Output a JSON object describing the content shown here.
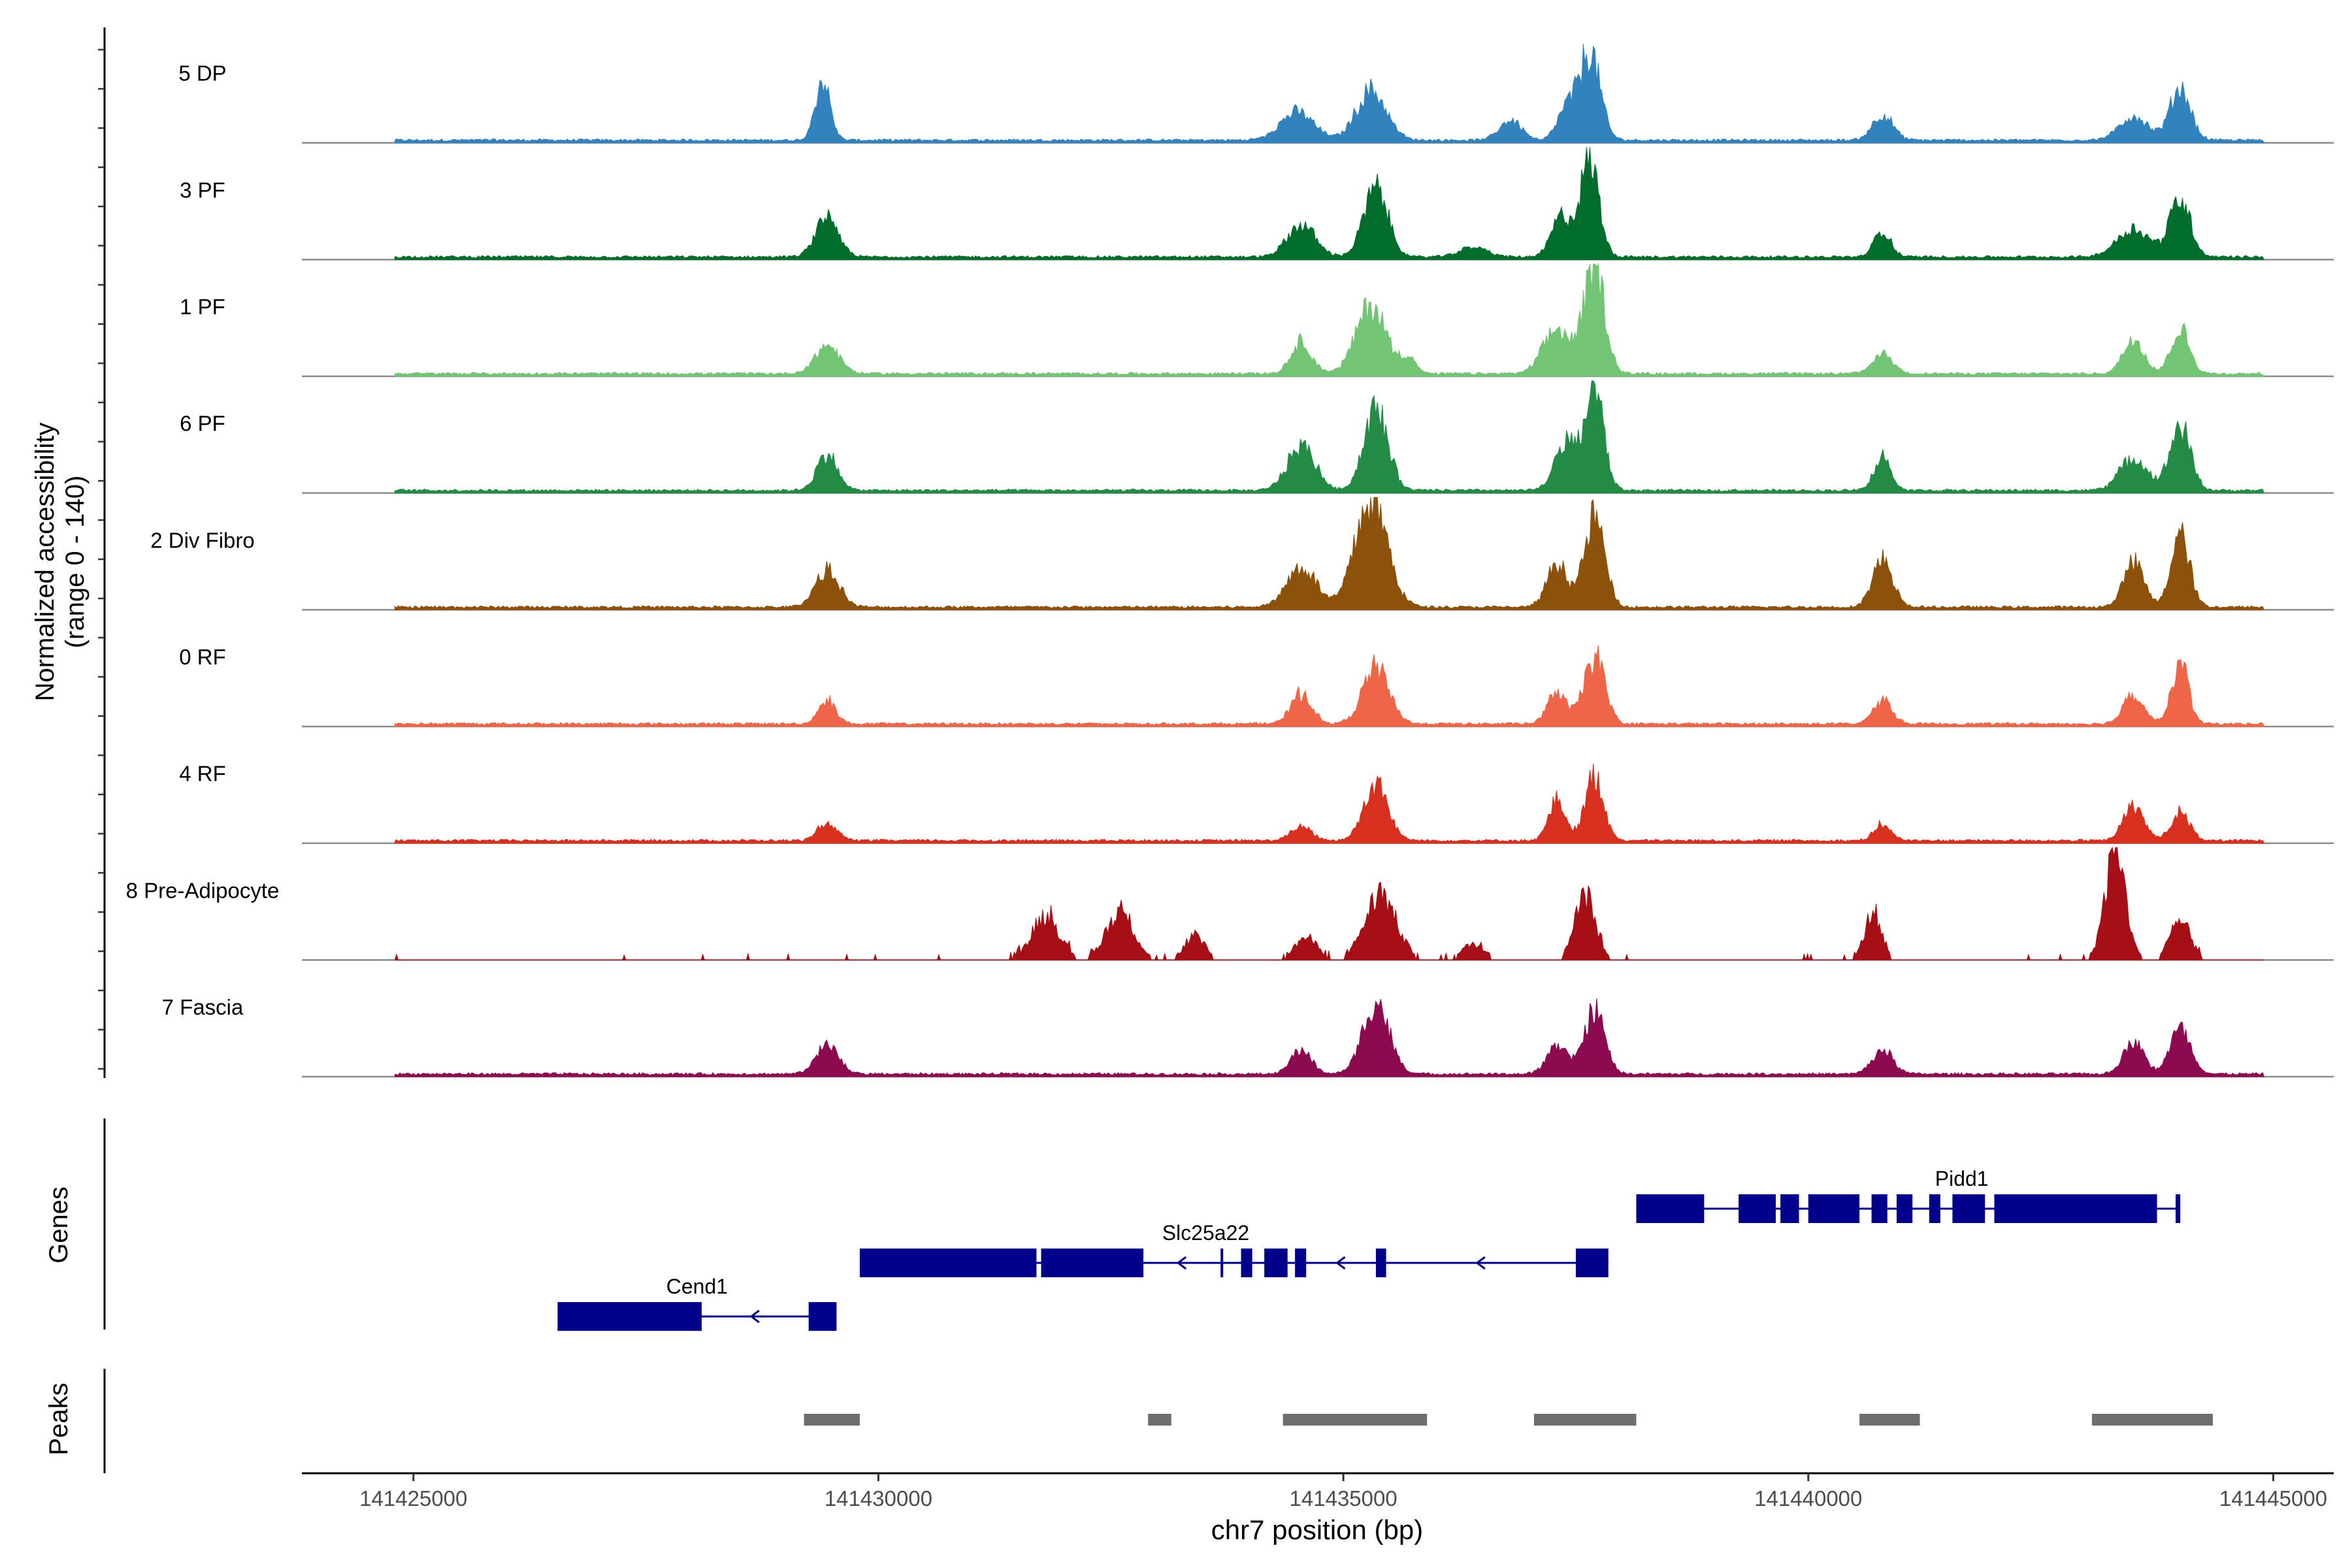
{
  "chart_data": {
    "type": "area",
    "title": "",
    "xlabel": "chr7 position (bp)",
    "ylabel": "Normalized accessibility\n(range 0 - 140)",
    "ylabel_line1": "Normalized accessibility",
    "ylabel_line2": "(range 0 - 140)",
    "y_range": [
      0,
      140
    ],
    "xlim": [
      141423800,
      141445650
    ],
    "x_ticks": [
      141425000,
      141430000,
      141435000,
      141440000,
      141445000
    ],
    "x_tick_labels": [
      "141425000",
      "141430000",
      "141435000",
      "141440000",
      "141445000"
    ],
    "track_labels": {
      "genes": "Genes",
      "peaks": "Peaks"
    },
    "coverage_range": [
      141424800,
      141444900
    ],
    "series": [
      {
        "name": "5 DP",
        "color": "#3182bd",
        "peaks": [
          [
            141429400,
            75,
            80
          ],
          [
            141434500,
            35,
            180
          ],
          [
            141435300,
            62,
            160
          ],
          [
            141436800,
            25,
            120
          ],
          [
            141437400,
            38,
            100
          ],
          [
            141437650,
            110,
            110
          ],
          [
            141440800,
            32,
            110
          ],
          [
            141443500,
            30,
            150
          ],
          [
            141444000,
            65,
            110
          ]
        ]
      },
      {
        "name": "3 PF",
        "color": "#006d2c",
        "peaks": [
          [
            141429450,
            50,
            120
          ],
          [
            141434550,
            40,
            150
          ],
          [
            141435350,
            85,
            130
          ],
          [
            141436400,
            12,
            150
          ],
          [
            141437350,
            50,
            110
          ],
          [
            141437650,
            120,
            100
          ],
          [
            141440800,
            32,
            90
          ],
          [
            141443500,
            35,
            180
          ],
          [
            141444000,
            72,
            110
          ]
        ]
      },
      {
        "name": "1 PF",
        "color": "#74c476",
        "peaks": [
          [
            141429450,
            35,
            130
          ],
          [
            141434550,
            40,
            110
          ],
          [
            141435300,
            85,
            160
          ],
          [
            141435700,
            20,
            80
          ],
          [
            141437300,
            55,
            150
          ],
          [
            141437700,
            135,
            110
          ],
          [
            141440800,
            25,
            110
          ],
          [
            141443500,
            45,
            110
          ],
          [
            141444000,
            55,
            100
          ]
        ]
      },
      {
        "name": "6 PF",
        "color": "#238b45",
        "peaks": [
          [
            141429450,
            45,
            110
          ],
          [
            141434550,
            55,
            150
          ],
          [
            141435350,
            100,
            130
          ],
          [
            141437400,
            60,
            120
          ],
          [
            141437700,
            125,
            100
          ],
          [
            141440800,
            42,
            90
          ],
          [
            141443500,
            40,
            150
          ],
          [
            141444000,
            80,
            110
          ]
        ]
      },
      {
        "name": "2 Div Fibro",
        "color": "#8c510a",
        "peaks": [
          [
            141429450,
            45,
            130
          ],
          [
            141434550,
            50,
            160
          ],
          [
            141435300,
            135,
            170
          ],
          [
            141437300,
            55,
            110
          ],
          [
            141437700,
            110,
            110
          ],
          [
            141440800,
            58,
            110
          ],
          [
            141443500,
            55,
            110
          ],
          [
            141444000,
            90,
            100
          ]
        ]
      },
      {
        "name": "0 RF",
        "color": "#ef6548",
        "peaks": [
          [
            141429450,
            30,
            90
          ],
          [
            141434550,
            38,
            110
          ],
          [
            141435350,
            70,
            140
          ],
          [
            141437300,
            40,
            100
          ],
          [
            141437700,
            85,
            110
          ],
          [
            141440800,
            30,
            100
          ],
          [
            141443500,
            38,
            110
          ],
          [
            141444000,
            75,
            90
          ]
        ]
      },
      {
        "name": "4 RF",
        "color": "#d7301f",
        "peaks": [
          [
            141429450,
            22,
            100
          ],
          [
            141434550,
            18,
            110
          ],
          [
            141435350,
            70,
            130
          ],
          [
            141437300,
            50,
            90
          ],
          [
            141437700,
            80,
            100
          ],
          [
            141440800,
            20,
            90
          ],
          [
            141443500,
            42,
            110
          ],
          [
            141444000,
            35,
            100
          ]
        ]
      },
      {
        "name": "8 Pre-Adipocyte",
        "color": "#a50f15",
        "peaks": [
          [
            141431800,
            55,
            150
          ],
          [
            141432600,
            60,
            150
          ],
          [
            141433400,
            30,
            110
          ],
          [
            141434600,
            28,
            120
          ],
          [
            141435400,
            80,
            170
          ],
          [
            141436400,
            20,
            120
          ],
          [
            141437600,
            80,
            110
          ],
          [
            141440700,
            60,
            90
          ],
          [
            141443300,
            135,
            110
          ],
          [
            141444000,
            48,
            110
          ]
        ]
      },
      {
        "name": "7 Fascia",
        "color": "#8b0a50",
        "peaks": [
          [
            141429450,
            35,
            120
          ],
          [
            141434550,
            30,
            110
          ],
          [
            141435350,
            90,
            140
          ],
          [
            141437300,
            35,
            110
          ],
          [
            141437700,
            80,
            110
          ],
          [
            141440800,
            30,
            110
          ],
          [
            141443500,
            40,
            110
          ],
          [
            141444000,
            55,
            110
          ]
        ]
      }
    ],
    "genes": [
      {
        "name": "Cend1",
        "strand": "-",
        "start": 141426550,
        "end": 141429550,
        "row": 2,
        "exons": [
          [
            141426550,
            141428100
          ],
          [
            141429250,
            141429550
          ]
        ]
      },
      {
        "name": "Slc25a22",
        "strand": "-",
        "start": 141429800,
        "end": 141437850,
        "row": 1,
        "exons": [
          [
            141429800,
            141431700
          ],
          [
            141431750,
            141432850
          ],
          [
            141433680,
            141433700
          ],
          [
            141433900,
            141434020
          ],
          [
            141434150,
            141434400
          ],
          [
            141434480,
            141434600
          ],
          [
            141435350,
            141435460
          ],
          [
            141437500,
            141437850
          ]
        ]
      },
      {
        "name": "Pidd1",
        "strand": "-",
        "start": 141438150,
        "end": 141444000,
        "row": 0,
        "exons": [
          [
            141438150,
            141438880
          ],
          [
            141439250,
            141439650
          ],
          [
            141439700,
            141439900
          ],
          [
            141440000,
            141440550
          ],
          [
            141440680,
            141440850
          ],
          [
            141440950,
            141441120
          ],
          [
            141441300,
            141441420
          ],
          [
            141441550,
            141441900
          ],
          [
            141442000,
            141443750
          ],
          [
            141443950,
            141444000
          ]
        ]
      }
    ],
    "peaks_track": [
      [
        141429200,
        141429800
      ],
      [
        141432900,
        141433150
      ],
      [
        141434350,
        141435900
      ],
      [
        141437050,
        141438150
      ],
      [
        141440550,
        141441200
      ],
      [
        141443050,
        141444350
      ]
    ]
  }
}
